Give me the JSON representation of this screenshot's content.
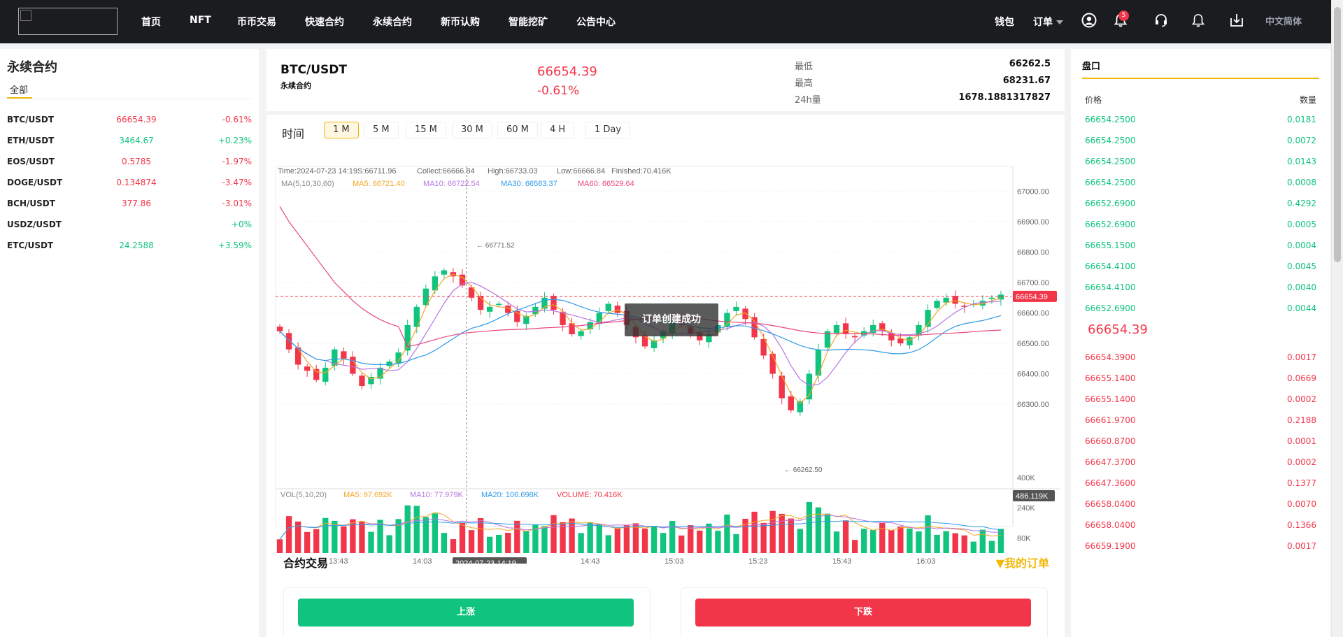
{
  "nav": {
    "items": [
      "首页",
      "NFT",
      "币币交易",
      "快速合约",
      "永续合约",
      "新币认购",
      "智能挖矿",
      "公告中心"
    ],
    "wallet": "钱包",
    "orders": "订单",
    "notification_count": "5",
    "language": "中文简体"
  },
  "markets": {
    "title": "永续合约",
    "tab": "全部",
    "rows": [
      {
        "symbol": "BTC/USDT",
        "price": "66654.39",
        "change": "-0.61%",
        "dir": "down"
      },
      {
        "symbol": "ETH/USDT",
        "price": "3464.67",
        "change": "+0.23%",
        "dir": "up"
      },
      {
        "symbol": "EOS/USDT",
        "price": "0.5785",
        "change": "-1.97%",
        "dir": "down"
      },
      {
        "symbol": "DOGE/USDT",
        "price": "0.134874",
        "change": "-3.47%",
        "dir": "down"
      },
      {
        "symbol": "BCH/USDT",
        "price": "377.86",
        "change": "-3.01%",
        "dir": "down"
      },
      {
        "symbol": "USDZ/USDT",
        "price": "",
        "change": "+0%",
        "dir": "up"
      },
      {
        "symbol": "ETC/USDT",
        "price": "24.2588",
        "change": "+3.59%",
        "dir": "up"
      }
    ]
  },
  "ticker": {
    "pair": "BTC/USDT",
    "contract_type": "永续合约",
    "price": "66654.39",
    "change_pct": "-0.61%",
    "low_label": "最低",
    "low": "66262.5",
    "high_label": "最高",
    "high": "68231.67",
    "vol_label": "24h量",
    "volume": "1678.1881317827"
  },
  "timeframes": {
    "label": "时间",
    "options": [
      "1 M",
      "5 M",
      "15 M",
      "30 M",
      "60 M",
      "4 H",
      "1 Day"
    ],
    "active": "1 M"
  },
  "chart_data": {
    "type": "candlestick",
    "info_line": {
      "time": "Time:2024-07-23 14:19",
      "open": "S:66711.96",
      "close": "Collect:66666.84",
      "high": "High:66733.03",
      "low": "Low:66666.84",
      "volume": "Finished:70.416K"
    },
    "ma_legend": {
      "label": "MA(5,10,30,60)",
      "ma5": "MA5: 66721.40",
      "ma10": "MA10: 66722.54",
      "ma30": "MA30: 66583.37",
      "ma60": "MA60: 66529.64"
    },
    "vol_legend": {
      "label": "VOL(5,10,20)",
      "ma5": "MA5: 97.692K",
      "ma10": "MA10: 77.979K",
      "ma20": "MA20: 106.698K",
      "volume": "VOLUME: 70.416K"
    },
    "price_axis": [
      "67000.00",
      "66900.00",
      "66800.00",
      "66700.00",
      "66600.00",
      "66500.00",
      "66400.00",
      "66300.00"
    ],
    "price_range": [
      66190,
      67040
    ],
    "vol_axis": [
      "400K",
      "240K",
      "80K"
    ],
    "vol_max_label": "486.119K",
    "vol_range": [
      0,
      500
    ],
    "time_axis": [
      "13:43",
      "14:03",
      "14:43",
      "15:03",
      "15:23",
      "15:43",
      "16:03"
    ],
    "crosshair_time": "2024-07-23 14:19",
    "last_price_label": "66654.39",
    "last_price": 66654.39,
    "max_marker": "66771.52",
    "min_marker": "66262.50",
    "close_path": [
      66540,
      66480,
      66430,
      66410,
      66380,
      66420,
      66480,
      66450,
      66400,
      66360,
      66390,
      66420,
      66440,
      66470,
      66560,
      66620,
      66680,
      66720,
      66740,
      66720,
      66690,
      66650,
      66610,
      66620,
      66630,
      66600,
      66570,
      66590,
      66620,
      66650,
      66610,
      66560,
      66530,
      66540,
      66570,
      66600,
      66630,
      66600,
      66560,
      66520,
      66490,
      66510,
      66540,
      66570,
      66560,
      66530,
      66510,
      66530,
      66560,
      66600,
      66620,
      66580,
      66520,
      66460,
      66400,
      66320,
      66280,
      66310,
      66400,
      66480,
      66540,
      66560,
      66530,
      66520,
      66540,
      66560,
      66540,
      66510,
      66500,
      66520,
      66560,
      66610,
      66640,
      66650,
      66630,
      66620,
      66630,
      66640,
      66650,
      66660
    ],
    "colors": {
      "up": "#10c47d",
      "down": "#f2364a",
      "ma5": "#f5a623",
      "ma10": "#b675e0",
      "ma30": "#2f9ae8",
      "ma60": "#e8457f"
    }
  },
  "toast": "订单创建成功",
  "trade": {
    "title": "合约交易",
    "my_orders": "▼我的订单",
    "buy": "上涨",
    "sell": "下跌"
  },
  "orderbook": {
    "title": "盘口",
    "price_header": "价格",
    "qty_header": "数量",
    "bids": [
      {
        "price": "66654.2500",
        "qty": "0.0181"
      },
      {
        "price": "66654.2500",
        "qty": "0.0072"
      },
      {
        "price": "66654.2500",
        "qty": "0.0143"
      },
      {
        "price": "66654.2500",
        "qty": "0.0008"
      },
      {
        "price": "66652.6900",
        "qty": "0.4292"
      },
      {
        "price": "66652.6900",
        "qty": "0.0005"
      },
      {
        "price": "66655.1500",
        "qty": "0.0004"
      },
      {
        "price": "66654.4100",
        "qty": "0.0045"
      },
      {
        "price": "66654.4100",
        "qty": "0.0040"
      },
      {
        "price": "66652.6900",
        "qty": "0.0044"
      }
    ],
    "mid_price": "66654.39",
    "asks": [
      {
        "price": "66654.3900",
        "qty": "0.0017"
      },
      {
        "price": "66655.1400",
        "qty": "0.0669"
      },
      {
        "price": "66655.1400",
        "qty": "0.0002"
      },
      {
        "price": "66661.9700",
        "qty": "0.2188"
      },
      {
        "price": "66660.8700",
        "qty": "0.0001"
      },
      {
        "price": "66647.3700",
        "qty": "0.0002"
      },
      {
        "price": "66647.3600",
        "qty": "0.1377"
      },
      {
        "price": "66658.0400",
        "qty": "0.0070"
      },
      {
        "price": "66658.0400",
        "qty": "0.1366"
      },
      {
        "price": "66659.1900",
        "qty": "0.0017"
      }
    ]
  }
}
